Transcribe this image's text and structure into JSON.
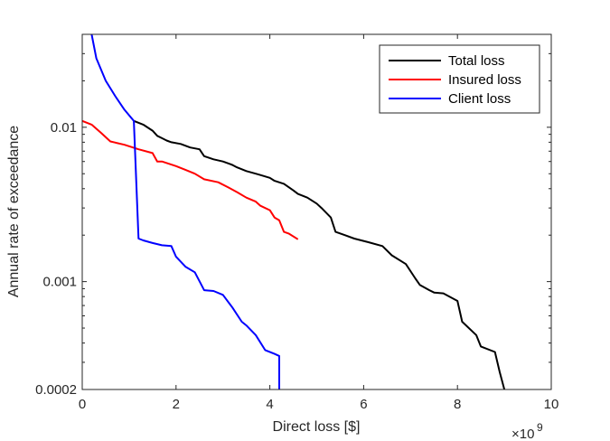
{
  "chart_data": {
    "type": "line",
    "xlabel": "Direct loss [$]",
    "ylabel": "Annual rate of exceedance",
    "x_exponent_label": "×10",
    "x_exponent_power": "9",
    "xlim": [
      0,
      10
    ],
    "ylim": [
      0.0002,
      0.04
    ],
    "y_scale": "log",
    "x_ticks": [
      {
        "value": 0,
        "label": "0"
      },
      {
        "value": 2,
        "label": "2"
      },
      {
        "value": 4,
        "label": "4"
      },
      {
        "value": 6,
        "label": "6"
      },
      {
        "value": 8,
        "label": "8"
      },
      {
        "value": 10,
        "label": "10"
      }
    ],
    "y_ticks": [
      {
        "value": 0.01,
        "label": "0.01"
      },
      {
        "value": 0.001,
        "label": "0.001"
      },
      {
        "value": 0.0002,
        "label": "0.0002"
      }
    ],
    "grid": false,
    "legend_position": "top-right",
    "series": [
      {
        "name": "Total loss",
        "color": "#000000",
        "x": [
          1.1,
          1.3,
          1.5,
          1.6,
          1.7,
          1.8,
          1.9,
          2.1,
          2.3,
          2.5,
          2.6,
          2.8,
          3.0,
          3.2,
          3.3,
          3.5,
          3.7,
          3.8,
          4.0,
          4.1,
          4.3,
          4.5,
          4.6,
          4.8,
          5.0,
          5.1,
          5.3,
          5.4,
          5.6,
          5.8,
          6.1,
          6.4,
          6.6,
          6.9,
          7.1,
          7.2,
          7.4,
          7.5,
          7.7,
          8.0,
          8.1,
          8.4,
          8.5,
          8.8,
          8.9,
          9.0
        ],
        "y": [
          0.011,
          0.0104,
          0.0095,
          0.0088,
          0.0085,
          0.0082,
          0.008,
          0.0078,
          0.0074,
          0.0072,
          0.0065,
          0.0062,
          0.006,
          0.0057,
          0.0055,
          0.0052,
          0.005,
          0.0049,
          0.0047,
          0.0045,
          0.0043,
          0.0039,
          0.0037,
          0.0035,
          0.0032,
          0.003,
          0.0026,
          0.0021,
          0.002,
          0.0019,
          0.0018,
          0.0017,
          0.00148,
          0.0013,
          0.00105,
          0.00095,
          0.00088,
          0.00085,
          0.00084,
          0.00075,
          0.00055,
          0.00045,
          0.00038,
          0.00035,
          0.00026,
          0.0002
        ]
      },
      {
        "name": "Insured loss",
        "color": "#ff0000",
        "x": [
          0,
          0.2,
          0.4,
          0.6,
          0.9,
          1.2,
          1.5,
          1.6,
          1.7,
          2.0,
          2.2,
          2.4,
          2.6,
          2.9,
          3.1,
          3.3,
          3.5,
          3.7,
          3.8,
          4.0,
          4.1,
          4.2,
          4.3,
          4.4,
          4.6
        ],
        "y": [
          0.011,
          0.0104,
          0.0092,
          0.0081,
          0.0077,
          0.0072,
          0.0068,
          0.006,
          0.006,
          0.0056,
          0.0053,
          0.005,
          0.0046,
          0.0044,
          0.0041,
          0.0038,
          0.0035,
          0.0033,
          0.0031,
          0.0029,
          0.0026,
          0.0025,
          0.0021,
          0.00205,
          0.00188
        ]
      },
      {
        "name": "Client loss",
        "color": "#0000ff",
        "x": [
          0.2,
          0.3,
          0.5,
          0.7,
          0.9,
          1.1,
          1.2,
          1.3,
          1.5,
          1.7,
          1.9,
          2.0,
          2.2,
          2.4,
          2.6,
          2.8,
          3.0,
          3.2,
          3.4,
          3.5,
          3.7,
          3.9,
          4.1,
          4.2,
          4.2
        ],
        "y": [
          0.04,
          0.028,
          0.02,
          0.016,
          0.013,
          0.011,
          0.0019,
          0.00185,
          0.00178,
          0.00172,
          0.0017,
          0.00145,
          0.00125,
          0.00115,
          0.00088,
          0.00087,
          0.00082,
          0.00068,
          0.00055,
          0.00052,
          0.00045,
          0.00036,
          0.00034,
          0.00033,
          0.0002
        ]
      }
    ]
  }
}
